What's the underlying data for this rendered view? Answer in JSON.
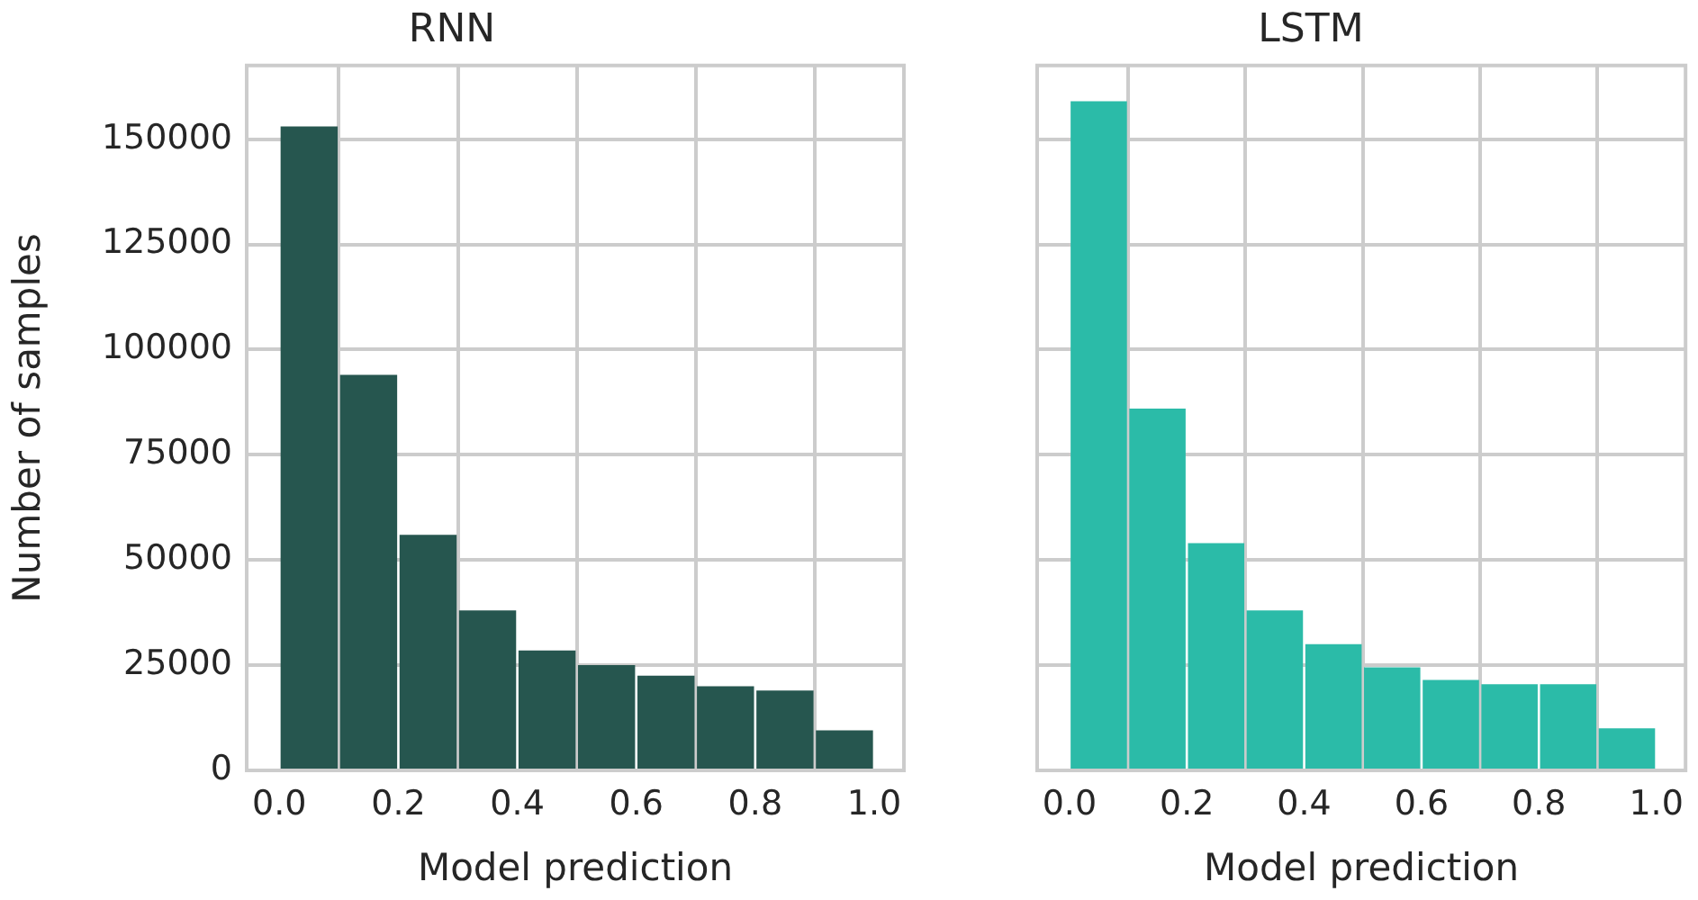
{
  "chart_data": [
    {
      "type": "histogram",
      "title": "RNN",
      "xlabel": "Model prediction",
      "ylabel": "Number of samples",
      "bins": [
        0,
        0.1,
        0.2,
        0.3,
        0.4,
        0.5,
        0.6,
        0.7,
        0.8,
        0.9,
        1.0
      ],
      "values": [
        153000,
        94000,
        56000,
        38000,
        28500,
        25000,
        22500,
        20000,
        19000,
        9500
      ],
      "color": "#26564f",
      "xlim": [
        -0.055,
        1.05
      ],
      "xticks": [
        {
          "value": 0,
          "label": "0.0"
        },
        {
          "value": 0.2,
          "label": "0.2"
        },
        {
          "value": 0.4,
          "label": "0.4"
        },
        {
          "value": 0.6,
          "label": "0.6"
        },
        {
          "value": 0.8,
          "label": "0.8"
        },
        {
          "value": 1,
          "label": "1.0"
        }
      ],
      "ylim": [
        0,
        167500
      ],
      "yticks": [
        0,
        25000,
        50000,
        75000,
        100000,
        125000,
        150000
      ],
      "grid": true
    },
    {
      "type": "histogram",
      "title": "LSTM",
      "xlabel": "Model prediction",
      "bins": [
        0,
        0.1,
        0.2,
        0.3,
        0.4,
        0.5,
        0.6,
        0.7,
        0.8,
        0.9,
        1.0
      ],
      "values": [
        159000,
        86000,
        54000,
        38000,
        30000,
        24500,
        21500,
        20500,
        20500,
        10000
      ],
      "color": "#2bbba8",
      "xlim": [
        -0.055,
        1.05
      ],
      "xticks": [
        {
          "value": 0,
          "label": "0.0"
        },
        {
          "value": 0.2,
          "label": "0.2"
        },
        {
          "value": 0.4,
          "label": "0.4"
        },
        {
          "value": 0.6,
          "label": "0.6"
        },
        {
          "value": 0.8,
          "label": "0.8"
        },
        {
          "value": 1,
          "label": "1.0"
        }
      ],
      "ylim": [
        0,
        167500
      ],
      "yticks": [
        0,
        25000,
        50000,
        75000,
        100000,
        125000,
        150000
      ],
      "grid": true,
      "tick_labels": "x"
    }
  ]
}
